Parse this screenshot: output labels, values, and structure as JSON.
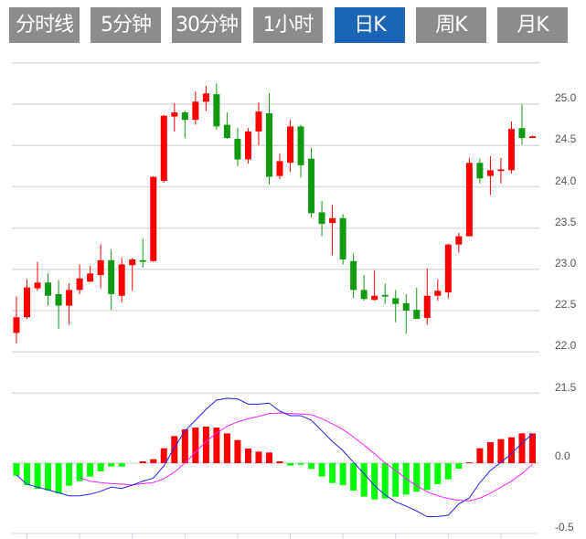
{
  "tabs": [
    {
      "label": "分时线",
      "active": false
    },
    {
      "label": "5分钟",
      "active": false
    },
    {
      "label": "30分钟",
      "active": false
    },
    {
      "label": "1小时",
      "active": false
    },
    {
      "label": "日K",
      "active": true
    },
    {
      "label": "周K",
      "active": false
    },
    {
      "label": "月K",
      "active": false
    }
  ],
  "colors": {
    "tab": "#8c8c8c",
    "tab_active": "#1a65b5",
    "up": "#ff0000",
    "down": "#119911",
    "macd_neg": "#00ff00",
    "dif": "#2222ee",
    "dea": "#ff22ff",
    "grid": "#dddddd"
  },
  "chart_data": [
    {
      "type": "candlestick",
      "ylim": [
        21.5,
        25.5
      ],
      "yticks": [
        "25.0",
        "24.5",
        "24.0",
        "23.5",
        "23.0",
        "22.5",
        "22.0",
        "21.5"
      ],
      "ytick_values": [
        25.0,
        24.5,
        24.0,
        23.5,
        23.0,
        22.5,
        22.0,
        21.5
      ],
      "grid": true,
      "ohlc": [
        [
          22.23,
          22.67,
          22.1,
          22.42
        ],
        [
          22.42,
          22.88,
          22.4,
          22.78
        ],
        [
          22.77,
          23.09,
          22.74,
          22.84
        ],
        [
          22.84,
          22.95,
          22.56,
          22.68
        ],
        [
          22.7,
          22.87,
          22.28,
          22.56
        ],
        [
          22.56,
          22.83,
          22.33,
          22.75
        ],
        [
          22.75,
          23.06,
          22.7,
          22.89
        ],
        [
          22.85,
          23.04,
          22.85,
          22.95
        ],
        [
          22.93,
          23.3,
          22.77,
          23.11
        ],
        [
          23.11,
          23.24,
          22.51,
          22.7
        ],
        [
          22.68,
          23.14,
          22.6,
          23.06
        ],
        [
          23.05,
          23.14,
          22.74,
          23.12
        ],
        [
          23.11,
          23.37,
          23.02,
          23.09
        ],
        [
          23.1,
          24.13,
          23.09,
          24.12
        ],
        [
          24.07,
          24.87,
          24.05,
          24.86
        ],
        [
          24.85,
          25.01,
          24.67,
          24.9
        ],
        [
          24.9,
          24.92,
          24.59,
          24.81
        ],
        [
          24.81,
          25.15,
          24.75,
          25.03
        ],
        [
          25.03,
          25.22,
          24.92,
          25.13
        ],
        [
          25.12,
          25.25,
          24.69,
          24.73
        ],
        [
          24.75,
          24.9,
          24.58,
          24.59
        ],
        [
          24.58,
          24.71,
          24.25,
          24.33
        ],
        [
          24.33,
          24.71,
          24.28,
          24.67
        ],
        [
          24.67,
          25.02,
          24.5,
          24.91
        ],
        [
          24.89,
          25.13,
          24.03,
          24.12
        ],
        [
          24.13,
          24.4,
          24.09,
          24.31
        ],
        [
          24.29,
          24.81,
          24.18,
          24.73
        ],
        [
          24.73,
          24.75,
          24.11,
          24.26
        ],
        [
          24.34,
          24.47,
          23.63,
          23.68
        ],
        [
          23.69,
          23.83,
          23.4,
          23.55
        ],
        [
          23.56,
          23.78,
          23.17,
          23.62
        ],
        [
          23.62,
          23.67,
          23.06,
          23.12
        ],
        [
          23.1,
          23.19,
          22.65,
          22.75
        ],
        [
          22.75,
          22.93,
          22.62,
          22.64
        ],
        [
          22.63,
          22.99,
          22.62,
          22.68
        ],
        [
          22.69,
          22.83,
          22.58,
          22.67
        ],
        [
          22.65,
          22.75,
          22.36,
          22.58
        ],
        [
          22.59,
          22.7,
          22.22,
          22.5
        ],
        [
          22.51,
          22.78,
          22.4,
          22.4
        ],
        [
          22.41,
          23.01,
          22.33,
          22.68
        ],
        [
          22.68,
          22.88,
          22.62,
          22.74
        ],
        [
          22.72,
          23.31,
          22.65,
          23.3
        ],
        [
          23.3,
          23.44,
          23.2,
          23.4
        ],
        [
          23.4,
          24.35,
          23.4,
          24.29
        ],
        [
          24.29,
          24.34,
          24.04,
          24.1
        ],
        [
          24.13,
          24.37,
          23.9,
          24.2
        ],
        [
          24.19,
          24.35,
          24.04,
          24.21
        ],
        [
          24.2,
          24.79,
          24.16,
          24.7
        ],
        [
          24.71,
          25.0,
          24.51,
          24.59
        ],
        [
          24.59,
          24.62,
          24.59,
          24.61
        ]
      ]
    },
    {
      "type": "macd",
      "ylim": [
        -0.5,
        0.5
      ],
      "yticks": [
        "0.0",
        "-0.5"
      ],
      "ytick_values": [
        0.0,
        -0.5
      ],
      "histogram": [
        -0.089,
        -0.156,
        -0.182,
        -0.193,
        -0.215,
        -0.16,
        -0.128,
        -0.095,
        -0.058,
        -0.024,
        -0.024,
        0,
        0.013,
        0.028,
        0.106,
        0.193,
        0.24,
        0.253,
        0.26,
        0.253,
        0.212,
        0.164,
        0.104,
        0.082,
        0.076,
        0.013,
        -0.017,
        -0.01,
        -0.041,
        -0.095,
        -0.141,
        -0.156,
        -0.195,
        -0.238,
        -0.258,
        -0.251,
        -0.238,
        -0.223,
        -0.203,
        -0.19,
        -0.149,
        -0.115,
        -0.039,
        0.006,
        0.106,
        0.149,
        0.171,
        0.184,
        0.212,
        0.212
      ],
      "dif": [
        -0.084,
        -0.15,
        -0.17,
        -0.19,
        -0.21,
        -0.232,
        -0.232,
        -0.22,
        -0.2,
        -0.17,
        -0.18,
        -0.156,
        -0.128,
        -0.106,
        -0.02,
        0.11,
        0.23,
        0.305,
        0.383,
        0.448,
        0.461,
        0.457,
        0.42,
        0.42,
        0.427,
        0.37,
        0.338,
        0.338,
        0.305,
        0.23,
        0.154,
        0.089,
        0.006,
        -0.074,
        -0.16,
        -0.225,
        -0.275,
        -0.305,
        -0.34,
        -0.381,
        -0.379,
        -0.37,
        -0.29,
        -0.247,
        -0.138,
        -0.052,
        0.006,
        0.067,
        0.143,
        0.208
      ],
      "dea": [
        null,
        null,
        null,
        null,
        null,
        null,
        -0.106,
        -0.128,
        -0.138,
        -0.145,
        -0.149,
        -0.154,
        -0.145,
        -0.138,
        -0.11,
        -0.063,
        0.002,
        0.078,
        0.154,
        0.214,
        0.262,
        0.294,
        0.316,
        0.333,
        0.353,
        0.357,
        0.353,
        0.35,
        0.344,
        0.316,
        0.279,
        0.24,
        0.186,
        0.128,
        0.067,
        0.002,
        -0.052,
        -0.11,
        -0.16,
        -0.203,
        -0.232,
        -0.251,
        -0.264,
        -0.268,
        -0.249,
        -0.214,
        -0.171,
        -0.128,
        -0.074,
        -0.009
      ]
    }
  ]
}
